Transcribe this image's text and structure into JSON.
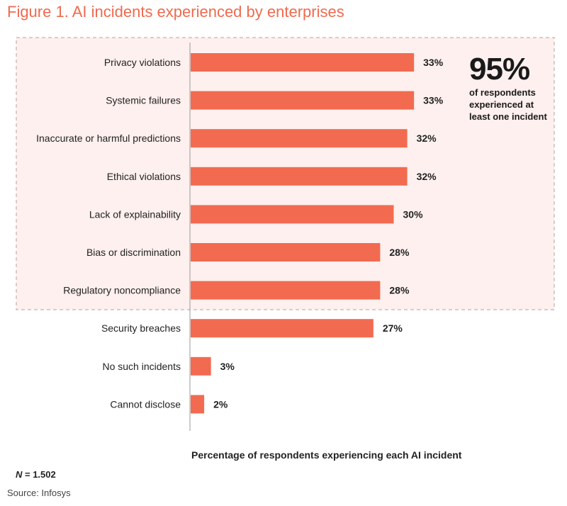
{
  "chart_data": {
    "type": "bar",
    "orientation": "horizontal",
    "title": "Figure 1. AI incidents experienced by enterprises",
    "categories": [
      "Privacy violations",
      "Systemic failures",
      "Inaccurate or harmful predictions",
      "Ethical violations",
      "Lack of explainability",
      "Bias or discrimination",
      "Regulatory noncompliance",
      "Security breaches",
      "No such incidents",
      "Cannot disclose"
    ],
    "values": [
      33,
      33,
      32,
      32,
      30,
      28,
      28,
      27,
      3,
      2
    ],
    "value_labels": [
      "33%",
      "33%",
      "32%",
      "32%",
      "30%",
      "28%",
      "28%",
      "27%",
      "3%",
      "2%"
    ],
    "xlabel": "Percentage of respondents experiencing each AI incident",
    "ylabel": "",
    "xlim": [
      0,
      40
    ],
    "highlighted_group_count": 7,
    "callout": {
      "value": "95%",
      "text_lines": [
        "of respondents",
        "experienced at",
        "least one incident"
      ]
    },
    "bar_color": "#f26b50",
    "highlight_bg": "#fdf0ee",
    "highlight_border": "#b9a29c"
  },
  "footer": {
    "n_symbol": "N",
    "n_rest": " = 1.502",
    "source": "Source: Infosys"
  }
}
